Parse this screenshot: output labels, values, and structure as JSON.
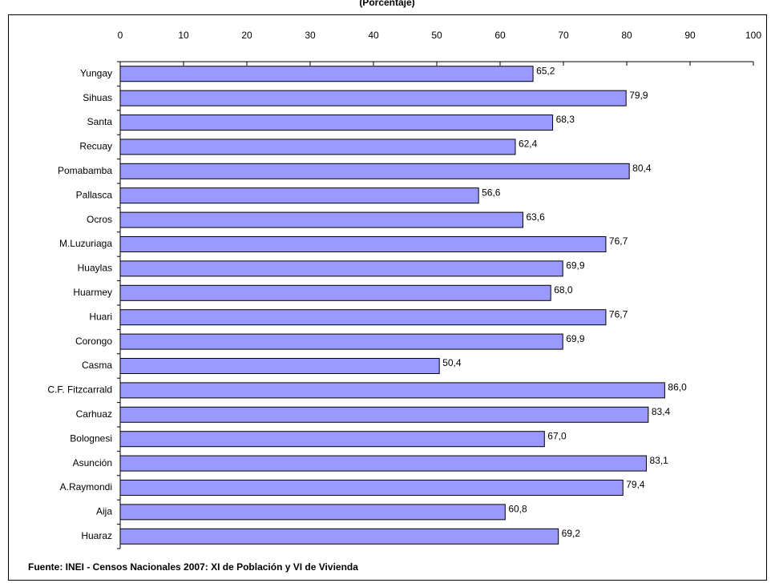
{
  "chart_data": {
    "type": "hbar",
    "subtitle": "(Porcentaje)",
    "source": "Fuente: INEI - Censos Nacionales 2007: XI de Población y VI de Vivienda",
    "categories": [
      "Yungay",
      "Sihuas",
      "Santa",
      "Recuay",
      "Pomabamba",
      "Pallasca",
      "Ocros",
      "M.Luzuriaga",
      "Huaylas",
      "Huarmey",
      "Huari",
      "Corongo",
      "Casma",
      "C.F. Fitzcarrald",
      "Carhuaz",
      "Bolognesi",
      "Asunción",
      "A.Raymondi",
      "Aija",
      "Huaraz"
    ],
    "values": [
      65.2,
      79.9,
      68.3,
      62.4,
      80.4,
      56.6,
      63.6,
      76.7,
      69.9,
      68.0,
      76.7,
      69.9,
      50.4,
      86.0,
      83.4,
      67.0,
      83.1,
      79.4,
      60.8,
      69.2
    ],
    "value_labels": [
      "65,2",
      "79,9",
      "68,3",
      "62,4",
      "80,4",
      "56,6",
      "63,6",
      "76,7",
      "69,9",
      "68,0",
      "76,7",
      "69,9",
      "50,4",
      "86,0",
      "83,4",
      "67,0",
      "83,1",
      "79,4",
      "60,8",
      "69,2"
    ],
    "color": "#9999ff",
    "xlim": [
      0,
      100
    ],
    "xticks": [
      0,
      10,
      20,
      30,
      40,
      50,
      60,
      70,
      80,
      90,
      100
    ]
  }
}
